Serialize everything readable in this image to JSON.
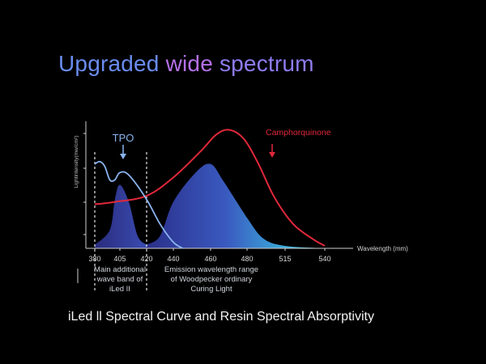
{
  "title": {
    "part1": "Upgraded",
    "part2": "wide",
    "part3": "spectrum"
  },
  "caption": "iLed ll Spectral Curve and Resin Spectral Absorptivity",
  "colors": {
    "title_blue": "#6a8cf0",
    "title_purple": "#b570e8",
    "camphorquinone": "#e0283a",
    "tpo": "#8ab4f0",
    "emission_dark": "#2b2f8a",
    "emission_light": "#4fd0e8"
  },
  "chart_data": {
    "type": "area",
    "xlabel": "Wavelength (mm)",
    "ylabel": "Lightintensity(mw/cm²)",
    "x_ticks": [
      "380",
      "405",
      "420",
      "440",
      "460",
      "480",
      "515",
      "540"
    ],
    "annotations": [
      {
        "label": "TPO",
        "arrow": "down"
      },
      {
        "label": "Camphorquinone",
        "arrow": "down"
      }
    ],
    "notes": {
      "left": [
        "Main additional",
        "wave band of",
        "iLed  II"
      ],
      "right": [
        "Emission wavelength range",
        "of Woodpecker ordinary",
        "Curing Light"
      ]
    },
    "dashed_markers_at": [
      "380",
      "420"
    ],
    "series": [
      {
        "name": "Camphorquinone",
        "kind": "line",
        "points": [
          [
            380,
            0.36
          ],
          [
            400,
            0.38
          ],
          [
            420,
            0.43
          ],
          [
            440,
            0.58
          ],
          [
            455,
            0.8
          ],
          [
            463,
            0.93
          ],
          [
            470,
            0.97
          ],
          [
            478,
            0.9
          ],
          [
            490,
            0.7
          ],
          [
            505,
            0.42
          ],
          [
            520,
            0.2
          ],
          [
            532,
            0.08
          ],
          [
            540,
            0.02
          ]
        ]
      },
      {
        "name": "TPO",
        "kind": "line",
        "points": [
          [
            380,
            0.69
          ],
          [
            385,
            0.71
          ],
          [
            390,
            0.67
          ],
          [
            395,
            0.56
          ],
          [
            400,
            0.56
          ],
          [
            405,
            0.62
          ],
          [
            410,
            0.6
          ],
          [
            420,
            0.4
          ],
          [
            430,
            0.2
          ],
          [
            440,
            0.05
          ],
          [
            445,
            0
          ]
        ]
      },
      {
        "kind": "area",
        "peak": 405,
        "points": [
          [
            380,
            0.03
          ],
          [
            395,
            0.15
          ],
          [
            400,
            0.4
          ],
          [
            405,
            0.52
          ],
          [
            410,
            0.38
          ],
          [
            415,
            0.1
          ],
          [
            420,
            0.03
          ]
        ]
      },
      {
        "kind": "area",
        "peak": 460,
        "points": [
          [
            420,
            0.03
          ],
          [
            430,
            0.1
          ],
          [
            440,
            0.38
          ],
          [
            452,
            0.62
          ],
          [
            460,
            0.69
          ],
          [
            467,
            0.55
          ],
          [
            480,
            0.25
          ],
          [
            495,
            0.08
          ],
          [
            515,
            0.02
          ],
          [
            540,
            0.0
          ]
        ]
      }
    ]
  }
}
